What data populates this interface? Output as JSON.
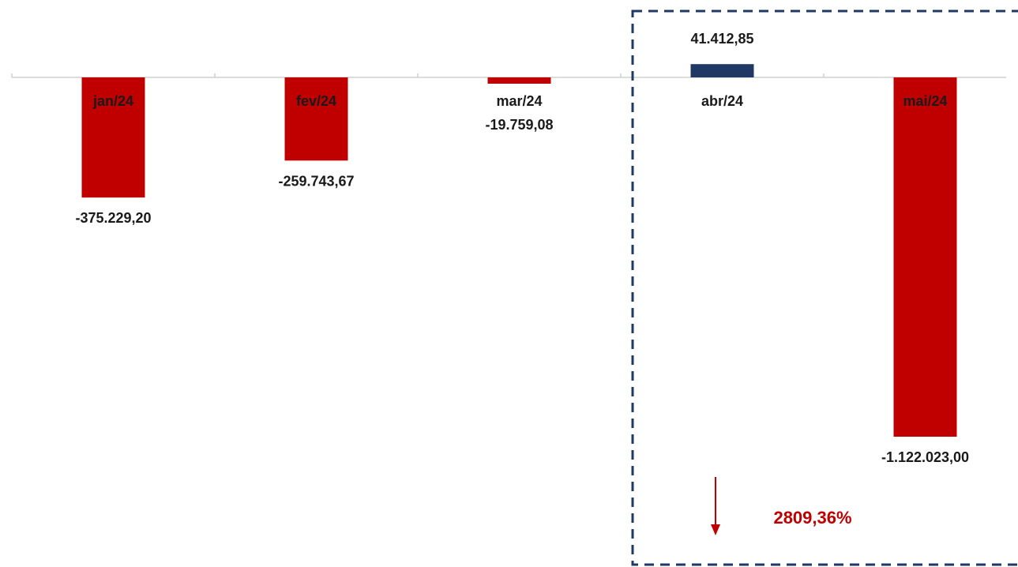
{
  "chart_data": {
    "type": "bar",
    "categories": [
      "jan/24",
      "fev/24",
      "mar/24",
      "abr/24",
      "mai/24"
    ],
    "values": [
      -375229.2,
      -259743.67,
      -19759.08,
      41412.85,
      -1122023.0
    ],
    "value_labels": [
      "-375.229,20",
      "-259.743,67",
      "-19.759,08",
      "41.412,85",
      "-1.122.023,00"
    ],
    "colors": {
      "negative": "#c00000",
      "positive": "#1f3864",
      "axis": "#d0d0d0",
      "highlight_box": "#1f3864",
      "annotation": "#c00000"
    },
    "highlight": {
      "categories": [
        "abr/24",
        "mai/24"
      ],
      "change_label": "2809,36%",
      "direction": "down"
    },
    "legend": "none",
    "grid": false
  }
}
